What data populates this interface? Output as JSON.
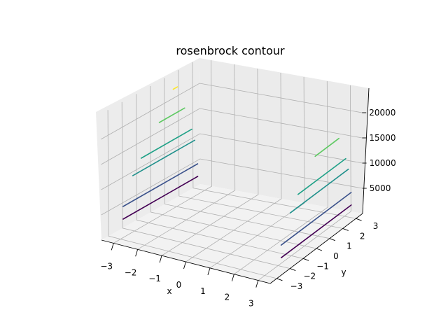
{
  "chart_data": {
    "type": "contour3d",
    "title": "rosenbrock contour",
    "xlabel": "x",
    "ylabel": "y",
    "zlabel": "",
    "xlim": [
      -3.5,
      3.5
    ],
    "ylim": [
      -3.5,
      3.5
    ],
    "zlim": [
      0,
      25000
    ],
    "x_ticks": [
      "−3",
      "−2",
      "−1",
      "0",
      "1",
      "2",
      "3"
    ],
    "y_ticks": [
      "−3",
      "−2",
      "−1",
      "0",
      "1",
      "2",
      "3"
    ],
    "z_ticks": [
      "5000",
      "10000",
      "15000",
      "20000"
    ],
    "grid": true,
    "colormap": "viridis",
    "colors": [
      "#440154",
      "#3b528b",
      "#21918c",
      "#1fa187",
      "#5ec962",
      "#b5de2b",
      "#fde725"
    ],
    "levels": [
      {
        "z": 2500,
        "color": "#440154",
        "segments": [
          [
            [
              -3.3,
              -2.3
            ],
            [
              -3.3,
              3.0
            ]
          ],
          [
            [
              3.3,
              -2.3
            ],
            [
              3.3,
              3.0
            ]
          ]
        ]
      },
      {
        "z": 5000,
        "color": "#3b528b",
        "segments": [
          [
            [
              -3.3,
              -2.3
            ],
            [
              -3.3,
              3.0
            ]
          ],
          [
            [
              3.3,
              -2.3
            ],
            [
              3.3,
              3.0
            ]
          ]
        ]
      },
      {
        "z": 10000,
        "color": "#21918c",
        "segments": [
          [
            [
              -3.3,
              -1.6
            ],
            [
              -3.3,
              2.8
            ]
          ],
          [
            [
              3.3,
              -1.6
            ],
            [
              3.3,
              2.8
            ]
          ]
        ]
      },
      {
        "z": 12500,
        "color": "#1fa187",
        "segments": [
          [
            [
              -3.3,
              -1.0
            ],
            [
              -3.3,
              2.6
            ]
          ],
          [
            [
              3.3,
              -1.0
            ],
            [
              3.3,
              2.6
            ]
          ]
        ]
      },
      {
        "z": 17500,
        "color": "#5ec962",
        "segments": [
          [
            [
              -3.3,
              0.3
            ],
            [
              -3.3,
              2.1
            ]
          ],
          [
            [
              3.3,
              0.3
            ],
            [
              3.3,
              2.1
            ]
          ]
        ]
      },
      {
        "z": 22500,
        "color": "#fde725",
        "segments": [
          [
            [
              -3.3,
              1.3
            ],
            [
              -3.3,
              1.6
            ]
          ]
        ]
      }
    ]
  }
}
